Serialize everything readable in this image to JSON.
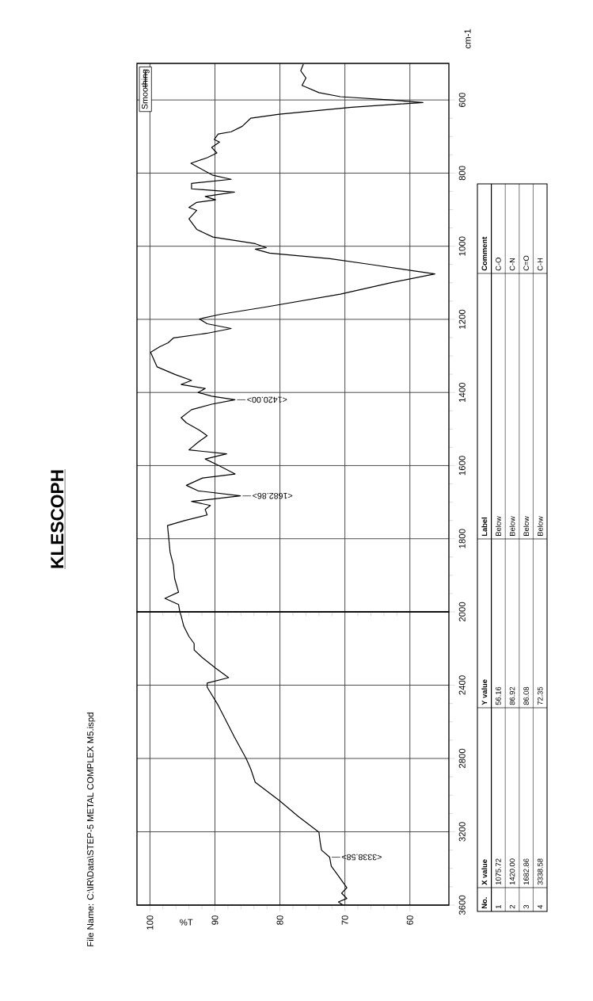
{
  "chart_data": [
    {
      "type": "line",
      "title": "KLESCOPH",
      "subtitle": "File Name:   C:\\IR\\Data\\STEP-5 METAL COMPLEX M5.ispd",
      "xlabel": "%T",
      "xlim": [
        102,
        54
      ],
      "xticks": [
        100,
        90,
        80,
        70,
        60
      ],
      "ylim": [
        3600,
        2000
      ],
      "yticks": [
        3600,
        3200,
        2800,
        2400
      ],
      "grid": true,
      "x": [
        95.4,
        95.2,
        94.8,
        94.0,
        93.2,
        93.2,
        91.9,
        89.9,
        87.9,
        91.2,
        91.2,
        89.5,
        87.0,
        85.2,
        84.5,
        83.8,
        80.1,
        77.2,
        74.0,
        73.8,
        73.6,
        72.35,
        72.1,
        71.2,
        69.7,
        70.5,
        69.7,
        71.0,
        70.3
      ],
      "series": [
        {
          "color": "#000000",
          "values": [
            2000,
            2022,
            2078,
            2134,
            2173,
            2208,
            2251,
            2307,
            2359,
            2389,
            2411,
            2510,
            2683,
            2800,
            2856,
            2930,
            3029,
            3116,
            3202,
            3259,
            3300,
            3338.58,
            3388,
            3431,
            3505,
            3535,
            3564,
            3583,
            3600
          ]
        }
      ],
      "annotations": [
        {
          "text": "<3338.58>",
          "x": 72.35,
          "y": 3338.58
        },
        "No.",
        "X value",
        "Y value",
        "Label",
        "Comment",
        "1",
        "1075.72",
        "56.16",
        "Below",
        "C-O",
        "2",
        "1420.00",
        "86.92",
        "Below",
        "C-N",
        "3",
        "1682.86",
        "86.08",
        "Below",
        "C=O",
        "4",
        "3338.58",
        "72.35",
        "Below",
        "C-H"
      ]
    },
    {
      "type": "line",
      "ylabel": "cm-1",
      "xlim": [
        102,
        54
      ],
      "xticks": [
        100,
        90,
        80,
        70,
        60
      ],
      "ylim": [
        2000,
        500
      ],
      "yticks": [
        2000,
        1800,
        1600,
        1400,
        1200,
        1000,
        800,
        600
      ],
      "tick_labels": "y",
      "grid": true,
      "legend": "top left",
      "x": [
        76.4,
        76.8,
        76.0,
        76.6,
        74.0,
        70.7,
        63.0,
        58.0,
        69.0,
        80.1,
        84.5,
        85.8,
        87.5,
        89.5,
        90.1,
        89.3,
        90.5,
        89.7,
        91.2,
        93.7,
        92.6,
        90.3,
        87.5,
        93.6,
        93.6,
        87.0,
        91.5,
        89.9,
        92.8,
        94.0,
        92.8,
        94.0,
        92.8,
        90.3,
        83.8,
        82.1,
        83.8,
        81.6,
        72.3,
        66.0,
        56.16,
        63.0,
        70.7,
        82.1,
        89.1,
        92.4,
        91.2,
        87.5,
        91.2,
        96.4,
        97.2,
        98.5,
        99.9,
        98.9,
        96.1,
        93.6,
        95.2,
        91.5,
        92.6,
        90.5,
        86.92,
        90.5,
        93.6,
        95.2,
        94.4,
        92.4,
        91.2,
        92.6,
        94.0,
        88.2,
        91.5,
        89.5,
        86.9,
        91.9,
        94.4,
        92.6,
        86.08,
        93.6,
        90.7,
        91.5,
        91.2,
        94.8,
        97.3,
        97.1,
        96.9,
        96.4,
        96.2,
        95.6,
        97.7,
        95.6,
        95.4
      ],
      "series": [
        {
          "name": "Smoothing",
          "color": "#000000",
          "values": [
            502,
            520,
            540,
            560,
            580,
            591,
            600,
            607,
            620,
            639,
            650,
            672,
            687,
            693,
            708,
            715,
            730,
            745,
            758,
            773,
            784,
            806,
            817,
            828,
            843,
            852,
            864,
            873,
            880,
            894,
            902,
            925,
            954,
            975,
            993,
            1004,
            1008,
            1019,
            1034,
            1050,
            1075.72,
            1100,
            1131,
            1166,
            1186,
            1199,
            1212,
            1225,
            1238,
            1251,
            1264,
            1275,
            1290,
            1330,
            1351,
            1367,
            1378,
            1389,
            1400,
            1410,
            1420,
            1432,
            1447,
            1469,
            1483,
            1503,
            1518,
            1536,
            1557,
            1568,
            1582,
            1599,
            1623,
            1634,
            1654,
            1669,
            1682.86,
            1698,
            1709,
            1720,
            1735,
            1751,
            1764,
            1800,
            1837,
            1872,
            1909,
            1946,
            1963,
            1980,
            2000
          ]
        }
      ],
      "annotations": [
        {
          "text": "<1420.00>",
          "x": 86.92,
          "y": 1420
        },
        {
          "text": "<1682.86>",
          "x": 86.08,
          "y": 1682.86
        }
      ]
    }
  ]
}
